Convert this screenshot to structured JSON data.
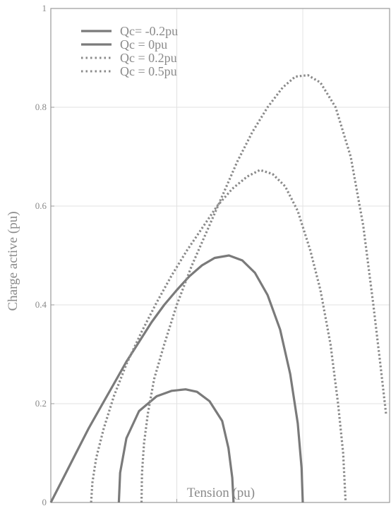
{
  "chart_data": {
    "type": "line",
    "title": "",
    "xlabel": "Tension (pu)",
    "ylabel": "Charge active (pu)",
    "xlim": [
      0,
      1.35
    ],
    "ylim": [
      0,
      1
    ],
    "x_ticks": [
      "0",
      "0.5",
      "1"
    ],
    "y_ticks": [
      "0",
      "0.2",
      "0.4",
      "0.6",
      "0.8",
      "1"
    ],
    "grid": true,
    "legend_position": "top-left",
    "series": [
      {
        "name": "Qc= -0.2pu",
        "style": "solid",
        "color": "#7a7a7a",
        "points": [
          [
            0.27,
            0.0
          ],
          [
            0.275,
            0.06
          ],
          [
            0.3,
            0.13
          ],
          [
            0.35,
            0.185
          ],
          [
            0.42,
            0.215
          ],
          [
            0.48,
            0.226
          ],
          [
            0.535,
            0.229
          ],
          [
            0.58,
            0.224
          ],
          [
            0.63,
            0.205
          ],
          [
            0.68,
            0.165
          ],
          [
            0.705,
            0.11
          ],
          [
            0.72,
            0.05
          ],
          [
            0.725,
            0.0
          ]
        ]
      },
      {
        "name": "Qc = 0pu",
        "style": "solid",
        "color": "#7a7a7a",
        "points": [
          [
            0.0,
            0.0
          ],
          [
            0.05,
            0.05
          ],
          [
            0.1,
            0.1
          ],
          [
            0.15,
            0.15
          ],
          [
            0.2,
            0.195
          ],
          [
            0.25,
            0.24
          ],
          [
            0.3,
            0.285
          ],
          [
            0.35,
            0.325
          ],
          [
            0.4,
            0.365
          ],
          [
            0.45,
            0.4
          ],
          [
            0.5,
            0.43
          ],
          [
            0.55,
            0.458
          ],
          [
            0.6,
            0.48
          ],
          [
            0.65,
            0.495
          ],
          [
            0.707,
            0.5
          ],
          [
            0.76,
            0.49
          ],
          [
            0.81,
            0.465
          ],
          [
            0.86,
            0.42
          ],
          [
            0.91,
            0.35
          ],
          [
            0.95,
            0.26
          ],
          [
            0.98,
            0.16
          ],
          [
            0.995,
            0.07
          ],
          [
            1.0,
            0.0
          ]
        ]
      },
      {
        "name": "Qc = 0.2pu",
        "style": "dotted",
        "color": "#8a8a8a",
        "points": [
          [
            0.16,
            0.0
          ],
          [
            0.165,
            0.04
          ],
          [
            0.18,
            0.09
          ],
          [
            0.21,
            0.15
          ],
          [
            0.25,
            0.215
          ],
          [
            0.3,
            0.28
          ],
          [
            0.36,
            0.345
          ],
          [
            0.42,
            0.405
          ],
          [
            0.48,
            0.46
          ],
          [
            0.54,
            0.51
          ],
          [
            0.6,
            0.555
          ],
          [
            0.66,
            0.6
          ],
          [
            0.72,
            0.635
          ],
          [
            0.78,
            0.66
          ],
          [
            0.83,
            0.673
          ],
          [
            0.88,
            0.665
          ],
          [
            0.93,
            0.64
          ],
          [
            0.98,
            0.59
          ],
          [
            1.03,
            0.51
          ],
          [
            1.07,
            0.43
          ],
          [
            1.11,
            0.32
          ],
          [
            1.14,
            0.2
          ],
          [
            1.16,
            0.1
          ],
          [
            1.17,
            0.0
          ]
        ]
      },
      {
        "name": "Qc = 0.5pu",
        "style": "dotted",
        "color": "#8a8a8a",
        "points": [
          [
            0.36,
            0.0
          ],
          [
            0.362,
            0.06
          ],
          [
            0.37,
            0.12
          ],
          [
            0.385,
            0.18
          ],
          [
            0.41,
            0.25
          ],
          [
            0.45,
            0.32
          ],
          [
            0.5,
            0.4
          ],
          [
            0.56,
            0.48
          ],
          [
            0.62,
            0.55
          ],
          [
            0.68,
            0.62
          ],
          [
            0.74,
            0.69
          ],
          [
            0.8,
            0.75
          ],
          [
            0.86,
            0.8
          ],
          [
            0.92,
            0.84
          ],
          [
            0.97,
            0.862
          ],
          [
            1.02,
            0.865
          ],
          [
            1.07,
            0.85
          ],
          [
            1.13,
            0.8
          ],
          [
            1.19,
            0.7
          ],
          [
            1.24,
            0.56
          ],
          [
            1.28,
            0.4
          ],
          [
            1.31,
            0.27
          ],
          [
            1.33,
            0.18
          ]
        ]
      }
    ]
  }
}
